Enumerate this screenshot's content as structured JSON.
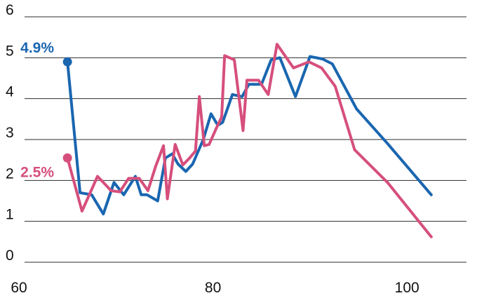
{
  "chart_data": {
    "type": "line",
    "title": "",
    "xlabel": "",
    "ylabel": "",
    "xlim": [
      60,
      103
    ],
    "ylim": [
      0,
      6
    ],
    "grid": true,
    "x_ticks": [
      "60",
      "80",
      "100"
    ],
    "y_ticks": [
      "0",
      "1",
      "2",
      "3",
      "4",
      "5",
      "6"
    ],
    "series": [
      {
        "color": "#1a66b0",
        "end_label": "4.9%",
        "points": [
          [
            65,
            4.9
          ],
          [
            66.3,
            1.7
          ],
          [
            67.5,
            1.65
          ],
          [
            68.7,
            1.18
          ],
          [
            69.8,
            1.95
          ],
          [
            70.8,
            1.65
          ],
          [
            72,
            2.1
          ],
          [
            72.6,
            1.65
          ],
          [
            73.2,
            1.65
          ],
          [
            74.3,
            1.5
          ],
          [
            75.1,
            2.55
          ],
          [
            75.8,
            2.65
          ],
          [
            76.4,
            2.4
          ],
          [
            77.2,
            2.22
          ],
          [
            77.9,
            2.4
          ],
          [
            79,
            3.0
          ],
          [
            79.8,
            3.63
          ],
          [
            80.5,
            3.35
          ],
          [
            81,
            3.42
          ],
          [
            82,
            4.1
          ],
          [
            83,
            4.05
          ],
          [
            83.7,
            4.35
          ],
          [
            85,
            4.35
          ],
          [
            86,
            4.95
          ],
          [
            86.9,
            5.0
          ],
          [
            88.5,
            4.05
          ],
          [
            90,
            5.03
          ],
          [
            91.3,
            4.97
          ],
          [
            92.3,
            4.85
          ],
          [
            94.8,
            3.75
          ],
          [
            98,
            2.9
          ],
          [
            102.5,
            1.65
          ]
        ]
      },
      {
        "color": "#d64f7c",
        "end_label": "2.5%",
        "points": [
          [
            65,
            2.55
          ],
          [
            66.5,
            1.25
          ],
          [
            68.1,
            2.1
          ],
          [
            69.5,
            1.75
          ],
          [
            70.4,
            1.72
          ],
          [
            71.3,
            2.05
          ],
          [
            72.4,
            2.05
          ],
          [
            73.3,
            1.75
          ],
          [
            74.1,
            2.35
          ],
          [
            74.9,
            2.85
          ],
          [
            75.3,
            1.55
          ],
          [
            76.1,
            2.88
          ],
          [
            76.9,
            2.38
          ],
          [
            77.6,
            2.55
          ],
          [
            78.2,
            2.72
          ],
          [
            78.6,
            4.05
          ],
          [
            79.1,
            2.85
          ],
          [
            79.6,
            2.88
          ],
          [
            80.3,
            3.25
          ],
          [
            80.9,
            3.55
          ],
          [
            81.2,
            5.05
          ],
          [
            82.2,
            4.95
          ],
          [
            83.1,
            3.22
          ],
          [
            83.5,
            4.45
          ],
          [
            84.7,
            4.45
          ],
          [
            85.7,
            4.1
          ],
          [
            86.6,
            5.33
          ],
          [
            88.3,
            4.75
          ],
          [
            89.9,
            4.9
          ],
          [
            91.2,
            4.75
          ],
          [
            92.6,
            4.3
          ],
          [
            94.6,
            2.75
          ],
          [
            98,
            1.95
          ],
          [
            102.5,
            0.62
          ]
        ]
      }
    ]
  }
}
